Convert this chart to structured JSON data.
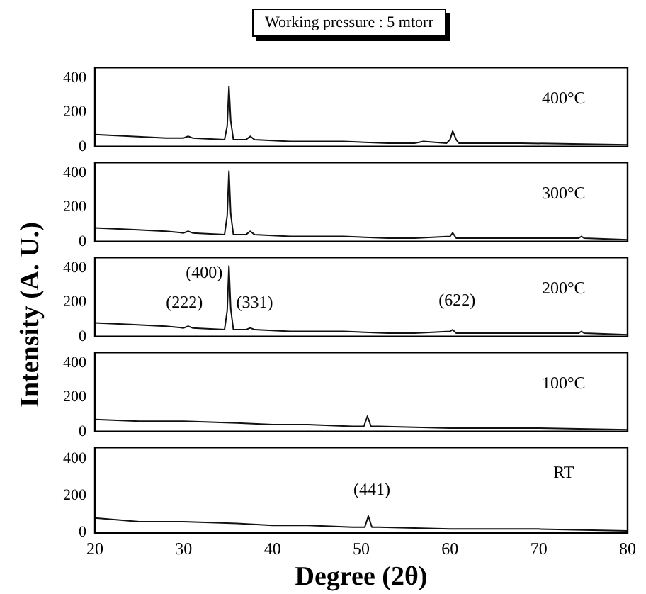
{
  "chart_data": [
    {
      "type": "line",
      "title": "Working pressure : 5 mtorr",
      "annotations": [
        "400°C"
      ],
      "xlim": [
        20,
        80
      ],
      "ylim": [
        0,
        460
      ],
      "yticks": [
        0,
        200,
        400
      ],
      "tick_labels": "y",
      "grid": false,
      "legend": false,
      "marker": "none",
      "line_style": "solid",
      "series": [
        {
          "color": "#111111",
          "x": [
            20,
            24,
            28,
            30,
            30.5,
            31,
            34.6,
            34.9,
            35.1,
            35.3,
            35.6,
            37,
            37.5,
            38,
            42,
            48,
            53,
            56,
            57,
            59.6,
            60.0,
            60.3,
            60.7,
            61,
            68,
            80
          ],
          "values": [
            70,
            60,
            50,
            50,
            60,
            50,
            40,
            120,
            350,
            150,
            40,
            40,
            60,
            40,
            30,
            30,
            20,
            20,
            30,
            20,
            40,
            90,
            40,
            20,
            20,
            10
          ]
        }
      ]
    },
    {
      "type": "line",
      "annotations": [
        "300°C"
      ],
      "xlim": [
        20,
        80
      ],
      "ylim": [
        0,
        460
      ],
      "yticks": [
        0,
        200,
        400
      ],
      "tick_labels": "y",
      "grid": false,
      "legend": false,
      "marker": "none",
      "line_style": "solid",
      "series": [
        {
          "color": "#111111",
          "x": [
            20,
            24,
            28,
            30,
            30.5,
            31,
            34.6,
            34.9,
            35.1,
            35.3,
            35.6,
            37,
            37.5,
            38,
            42,
            48,
            53,
            56,
            60.0,
            60.3,
            60.7,
            66,
            74.5,
            74.8,
            75.1,
            80
          ],
          "values": [
            80,
            70,
            60,
            50,
            60,
            50,
            40,
            150,
            410,
            160,
            40,
            40,
            60,
            40,
            30,
            30,
            20,
            20,
            30,
            50,
            20,
            20,
            20,
            30,
            20,
            10
          ]
        }
      ]
    },
    {
      "type": "line",
      "annotations": [
        "(400)",
        "(222)",
        "(331)",
        "(622)",
        "200°C"
      ],
      "xlim": [
        20,
        80
      ],
      "ylim": [
        0,
        460
      ],
      "yticks": [
        0,
        200,
        400
      ],
      "tick_labels": "y",
      "grid": false,
      "legend": false,
      "marker": "none",
      "line_style": "solid",
      "ylabel": "Intensity (A. U.)",
      "series": [
        {
          "color": "#111111",
          "x": [
            20,
            24,
            28,
            30,
            30.5,
            31,
            34.6,
            34.9,
            35.1,
            35.3,
            35.6,
            37,
            37.5,
            38,
            42,
            48,
            53,
            56,
            60.0,
            60.3,
            60.7,
            66,
            74.5,
            74.8,
            75.1,
            80
          ],
          "values": [
            80,
            70,
            60,
            50,
            60,
            50,
            40,
            150,
            410,
            160,
            40,
            40,
            50,
            40,
            30,
            30,
            20,
            20,
            30,
            40,
            20,
            20,
            20,
            30,
            20,
            10
          ]
        }
      ]
    },
    {
      "type": "line",
      "annotations": [
        "100°C"
      ],
      "xlim": [
        20,
        80
      ],
      "ylim": [
        0,
        460
      ],
      "yticks": [
        0,
        200,
        400
      ],
      "tick_labels": "y",
      "grid": false,
      "legend": false,
      "marker": "none",
      "line_style": "solid",
      "series": [
        {
          "color": "#111111",
          "x": [
            20,
            25,
            30,
            36,
            40,
            44,
            49,
            50.3,
            50.7,
            51.1,
            52,
            60,
            70,
            80
          ],
          "values": [
            70,
            60,
            60,
            50,
            40,
            40,
            30,
            30,
            90,
            30,
            30,
            20,
            20,
            10
          ]
        }
      ]
    },
    {
      "type": "line",
      "annotations": [
        "RT",
        "(441)"
      ],
      "xlim": [
        20,
        80
      ],
      "ylim": [
        0,
        460
      ],
      "xticks": [
        20,
        30,
        40,
        50,
        60,
        70,
        80
      ],
      "yticks": [
        0,
        200,
        400
      ],
      "xlabel": "Degree (2θ)",
      "grid": false,
      "legend": false,
      "marker": "none",
      "line_style": "solid",
      "series": [
        {
          "color": "#111111",
          "x": [
            20,
            25,
            30,
            36,
            40,
            44,
            49,
            50.4,
            50.8,
            51.2,
            52,
            60,
            70,
            80
          ],
          "values": [
            80,
            60,
            60,
            50,
            40,
            40,
            30,
            30,
            90,
            30,
            30,
            20,
            20,
            10
          ]
        }
      ]
    }
  ]
}
